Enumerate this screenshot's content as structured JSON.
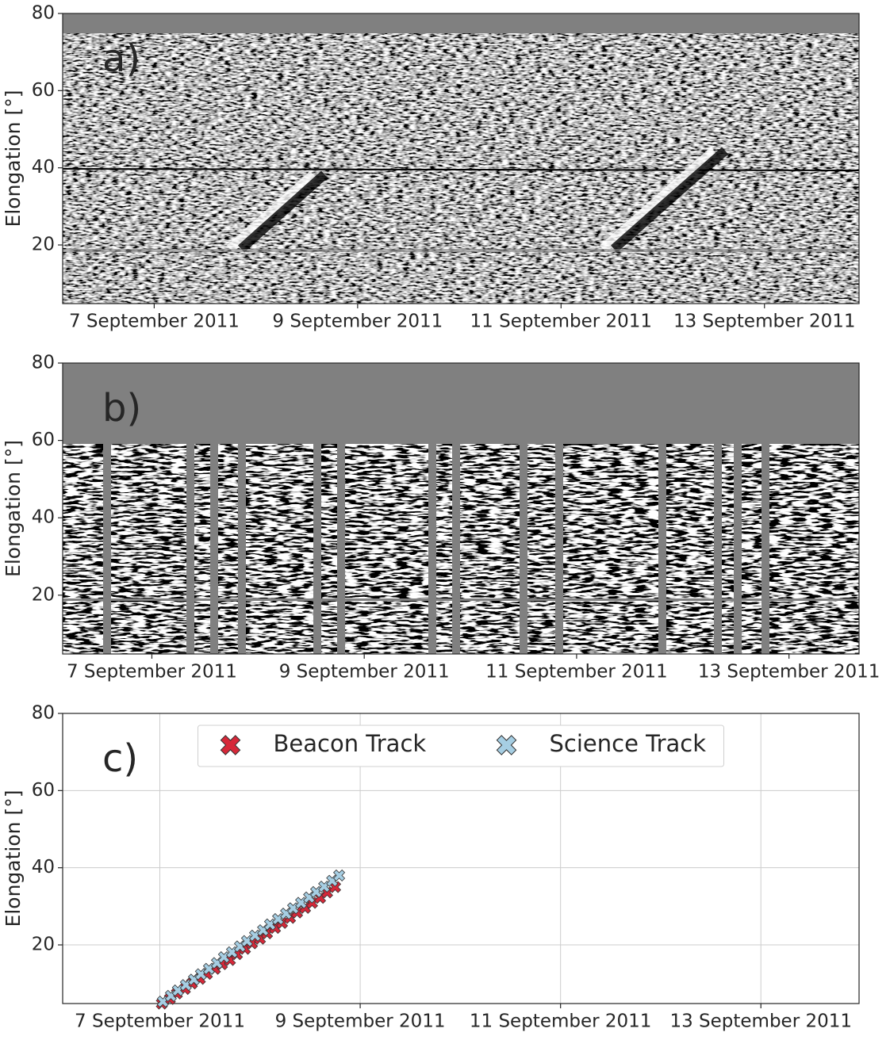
{
  "chart_data": [
    {
      "type": "image",
      "label": "a)",
      "ylabel": "Elongation [°]",
      "xlim": [
        6.1,
        13.93
      ],
      "xticks": [
        {
          "value": 7,
          "label": "7 September 2011"
        },
        {
          "value": 9,
          "label": "9 September 2011"
        },
        {
          "value": 11,
          "label": "11 September 2011"
        },
        {
          "value": 13,
          "label": "13 September 2011"
        }
      ],
      "ylim": [
        4.8,
        80
      ],
      "yticks": [
        20,
        40,
        60,
        80
      ],
      "grid": false
    },
    {
      "type": "image",
      "label": "b)",
      "ylabel": "Elongation [°]",
      "xlim": [
        6.16,
        13.66
      ],
      "xticks": [
        {
          "value": 7,
          "label": "7 September 2011"
        },
        {
          "value": 9,
          "label": "9 September 2011"
        },
        {
          "value": 11,
          "label": "11 September 2011"
        },
        {
          "value": 13,
          "label": "13 September 2011"
        }
      ],
      "ylim": [
        4.8,
        80
      ],
      "yticks": [
        20,
        40,
        60,
        80
      ],
      "grid": false
    },
    {
      "type": "scatter",
      "label": "c)",
      "ylabel": "Elongation [°]",
      "xlim": [
        6.03,
        13.98
      ],
      "xticks": [
        {
          "value": 7,
          "label": "7 September 2011"
        },
        {
          "value": 9,
          "label": "9 September 2011"
        },
        {
          "value": 11,
          "label": "11 September 2011"
        },
        {
          "value": 13,
          "label": "13 September 2011"
        }
      ],
      "ylim": [
        4.8,
        80
      ],
      "yticks": [
        20,
        40,
        60,
        80
      ],
      "grid": true,
      "legend": "upper center",
      "series": [
        {
          "name": "Beacon Track",
          "color": "#d62839",
          "x": [
            7.02,
            7.1,
            7.17,
            7.25,
            7.32,
            7.4,
            7.47,
            7.55,
            7.62,
            7.7,
            7.77,
            7.85,
            7.92,
            8.0,
            8.07,
            8.15,
            8.22,
            8.3,
            8.37,
            8.45,
            8.52,
            8.6,
            8.67,
            8.75
          ],
          "values": [
            4.8,
            6.0,
            7.4,
            8.6,
            10.0,
            11.2,
            12.5,
            13.8,
            15.0,
            16.1,
            17.6,
            19.0,
            20.4,
            21.6,
            23.0,
            24.4,
            25.7,
            27.0,
            28.4,
            29.6,
            30.9,
            32.2,
            33.6,
            35.0
          ]
        },
        {
          "name": "Science Track",
          "color": "#a6cee3",
          "x": [
            7.03,
            7.11,
            7.18,
            7.26,
            7.34,
            7.41,
            7.49,
            7.57,
            7.64,
            7.72,
            7.8,
            7.87,
            7.95,
            8.03,
            8.1,
            8.18,
            8.26,
            8.33,
            8.41,
            8.49,
            8.56,
            8.64,
            8.72,
            8.79
          ],
          "values": [
            5.3,
            6.8,
            8.2,
            9.6,
            11.0,
            12.4,
            13.8,
            15.3,
            16.8,
            18.1,
            19.6,
            21.0,
            22.4,
            23.8,
            25.3,
            26.7,
            28.1,
            29.5,
            30.9,
            32.3,
            33.7,
            35.1,
            36.6,
            38.0
          ]
        }
      ]
    }
  ]
}
